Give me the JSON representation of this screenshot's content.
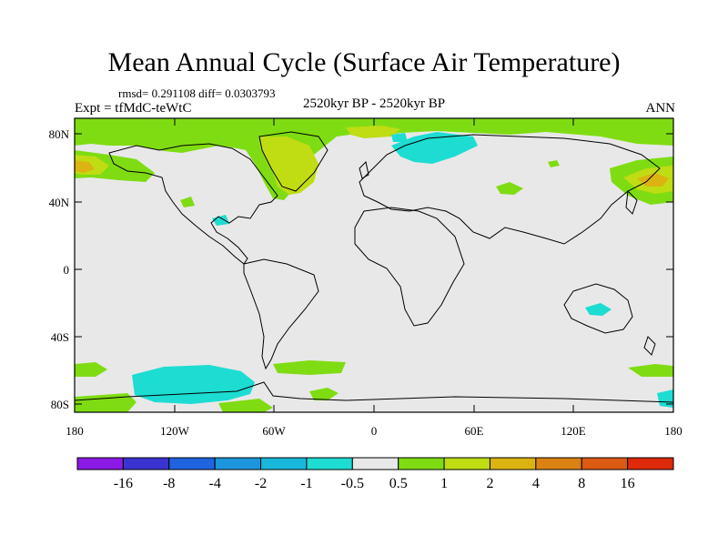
{
  "title": "Mean Annual Cycle (Surface Air Temperature)",
  "stats": "rmsd= 0.291108 diff= 0.0303793",
  "experiment": "Expt = tfMdC-teWtC",
  "period": "2520kyr BP - 2520kyr BP",
  "season": "ANN",
  "lat_labels": [
    "80N",
    "40N",
    "0",
    "40S",
    "80S"
  ],
  "lon_labels": [
    "180",
    "120W",
    "60W",
    "0",
    "60E",
    "120E",
    "180"
  ],
  "colorbar": {
    "labels": [
      "-16",
      "-8",
      "-4",
      "-2",
      "-1",
      "-0.5",
      "0.5",
      "1",
      "2",
      "4",
      "8",
      "16"
    ],
    "colors": [
      "#8b1ae6",
      "#3a33cf",
      "#1f63de",
      "#1d95de",
      "#17b8dc",
      "#1ddcd2",
      "#e8e8e8",
      "#7fdc12",
      "#c0dc12",
      "#dcb412",
      "#dc8212",
      "#dc5a12",
      "#dc2a0a"
    ]
  },
  "colors": {
    "background": "#e8e8e8",
    "warm_small": "#7fdc12",
    "warm_med": "#c0dc12",
    "warm_high": "#dcb412",
    "cool_small": "#1ddcd2"
  }
}
